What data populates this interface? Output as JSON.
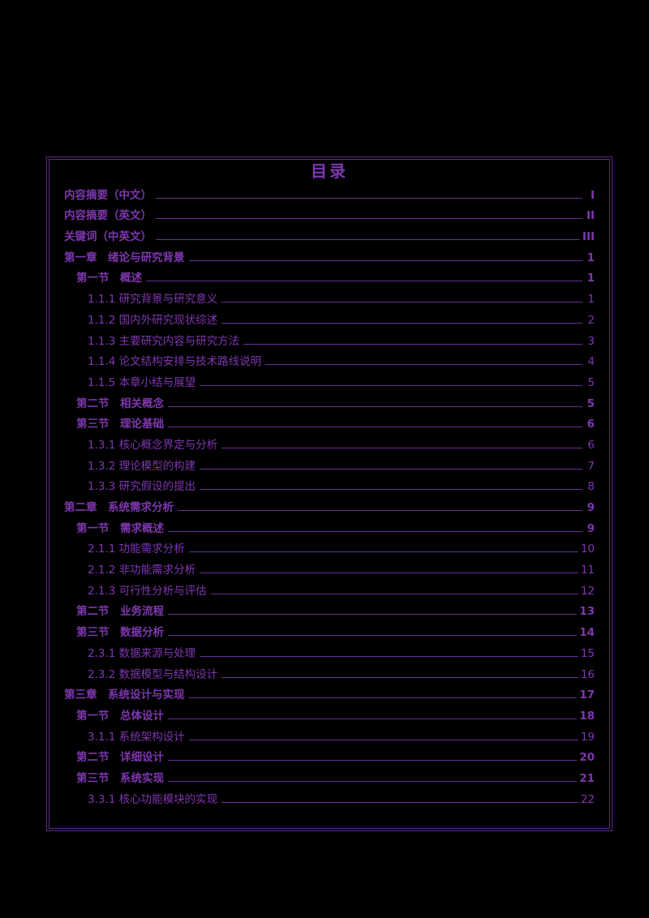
{
  "colors": {
    "background": "#000000",
    "text": "#7e37b0",
    "line": "#6a2d96",
    "border": "#5d2a84"
  },
  "toc": {
    "title": "目录",
    "entries": [
      {
        "text": "内容摘要（中文）",
        "page": "I",
        "level": 0,
        "bold": true
      },
      {
        "text": "内容摘要（英文）",
        "page": "II",
        "level": 0,
        "bold": true
      },
      {
        "text": "关键词（中英文）",
        "page": "III",
        "level": 0,
        "bold": true
      },
      {
        "text": "第一章　绪论与研究背景",
        "page": "1",
        "level": 0,
        "bold": true
      },
      {
        "text": "第一节　概述",
        "page": "1",
        "level": 1,
        "bold": true
      },
      {
        "text": "1.1.1 研究背景与研究意义",
        "page": "1",
        "level": 2,
        "bold": false
      },
      {
        "text": "1.1.2 国内外研究现状综述",
        "page": "2",
        "level": 2,
        "bold": false
      },
      {
        "text": "1.1.3 主要研究内容与研究方法",
        "page": "3",
        "level": 2,
        "bold": false
      },
      {
        "text": "1.1.4 论文结构安排与技术路线说明",
        "page": "4",
        "level": 2,
        "bold": false
      },
      {
        "text": "1.1.5 本章小结与展望",
        "page": "5",
        "level": 2,
        "bold": false
      },
      {
        "text": "第二节　相关概念",
        "page": "5",
        "level": 1,
        "bold": true
      },
      {
        "text": "第三节　理论基础",
        "page": "6",
        "level": 1,
        "bold": true
      },
      {
        "text": "1.3.1 核心概念界定与分析",
        "page": "6",
        "level": 2,
        "bold": false
      },
      {
        "text": "1.3.2 理论模型的构建",
        "page": "7",
        "level": 2,
        "bold": false
      },
      {
        "text": "1.3.3 研究假设的提出",
        "page": "8",
        "level": 2,
        "bold": false
      },
      {
        "text": "第二章　系统需求分析",
        "page": "9",
        "level": 0,
        "bold": true
      },
      {
        "text": "第一节　需求概述",
        "page": "9",
        "level": 1,
        "bold": true
      },
      {
        "text": "2.1.1 功能需求分析",
        "page": "10",
        "level": 2,
        "bold": false
      },
      {
        "text": "2.1.2 非功能需求分析",
        "page": "11",
        "level": 2,
        "bold": false
      },
      {
        "text": "2.1.3 可行性分析与评估",
        "page": "12",
        "level": 2,
        "bold": false
      },
      {
        "text": "第二节　业务流程",
        "page": "13",
        "level": 1,
        "bold": true
      },
      {
        "text": "第三节　数据分析",
        "page": "14",
        "level": 1,
        "bold": true
      },
      {
        "text": "2.3.1 数据来源与处理",
        "page": "15",
        "level": 2,
        "bold": false
      },
      {
        "text": "2.3.2 数据模型与结构设计",
        "page": "16",
        "level": 2,
        "bold": false
      },
      {
        "text": "第三章　系统设计与实现",
        "page": "17",
        "level": 0,
        "bold": true
      },
      {
        "text": "第一节　总体设计",
        "page": "18",
        "level": 1,
        "bold": true
      },
      {
        "text": "3.1.1 系统架构设计",
        "page": "19",
        "level": 2,
        "bold": false
      },
      {
        "text": "第二节　详细设计",
        "page": "20",
        "level": 1,
        "bold": true
      },
      {
        "text": "第三节　系统实现",
        "page": "21",
        "level": 1,
        "bold": true
      },
      {
        "text": "3.3.1 核心功能模块的实现",
        "page": "22",
        "level": 2,
        "bold": false
      }
    ]
  }
}
